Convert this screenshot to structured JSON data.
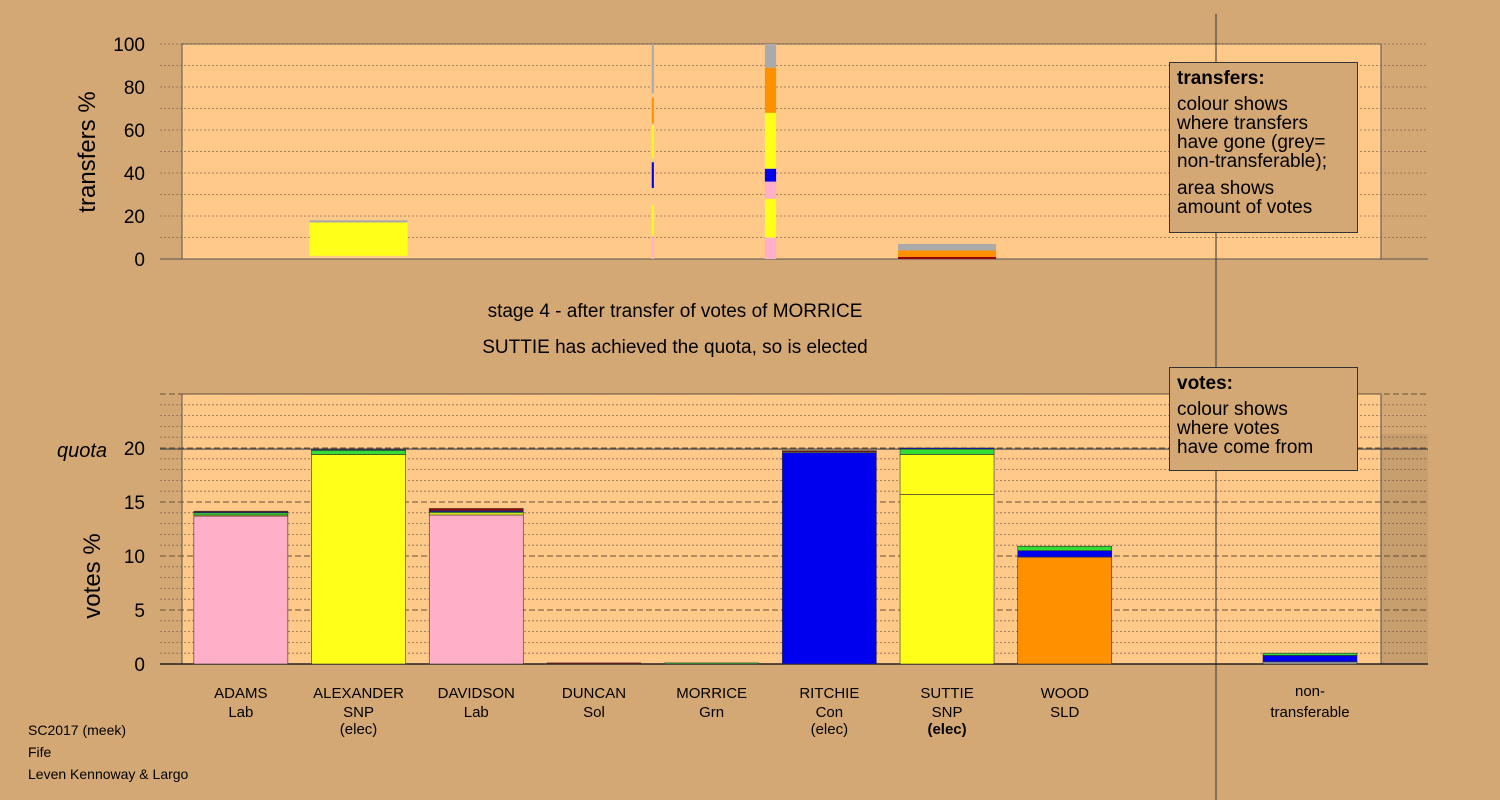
{
  "chart_data": {
    "type": "bar",
    "title": "stage 4 - after transfer of votes of MORRICE",
    "subtitle": "SUTTIE has achieved the quota, so is elected",
    "quota": 19.9,
    "quota_label": "quota",
    "colors": {
      "Lab": "#ffb0c8",
      "SNP": "#ffff1a",
      "Con": "#0000ee",
      "SLD": "#ff9000",
      "Grn": "#33dd33",
      "Sol": "#990000",
      "nontransferable": "#aaaaaa"
    },
    "transfers": {
      "ylabel": "transfers %",
      "ylim": [
        0,
        100
      ],
      "yticks": [
        0,
        20,
        40,
        60,
        80,
        100
      ],
      "columns": [
        {
          "index": 1,
          "width_pct": 7,
          "segments": [
            [
              "SNP",
              1.5,
              17
            ],
            [
              "nontransferable",
              17,
              18
            ]
          ]
        },
        {
          "index": 3.5,
          "width_pct": 0.15,
          "segments": [
            [
              "Lab",
              0,
              10
            ],
            [
              "SNP",
              11,
              25
            ],
            [
              "Con",
              33,
              45
            ],
            [
              "SNP",
              47,
              62
            ],
            [
              "SLD",
              63,
              75
            ],
            [
              "nontransferable",
              77,
              100
            ]
          ]
        },
        {
          "index": 4.5,
          "width_pct": 0.8,
          "segments": [
            [
              "Lab",
              0,
              10
            ],
            [
              "SNP",
              10,
              28
            ],
            [
              "Lab",
              28,
              36
            ],
            [
              "Con",
              36,
              42
            ],
            [
              "SNP",
              42,
              68
            ],
            [
              "SLD",
              68,
              89
            ],
            [
              "nontransferable",
              89,
              100
            ]
          ]
        },
        {
          "index": 6,
          "width_pct": 7,
          "segments": [
            [
              "Sol",
              0,
              1
            ],
            [
              "SLD",
              1,
              4
            ],
            [
              "nontransferable",
              4,
              7
            ]
          ]
        }
      ]
    },
    "votes": {
      "ylabel": "votes %",
      "ylim": [
        0,
        20
      ],
      "yticks": [
        0,
        5,
        10,
        15,
        20
      ],
      "candidates": [
        {
          "name": "ADAMS",
          "party": "Lab",
          "status": "",
          "segments": [
            [
              "Lab",
              13.7
            ],
            [
              "SNP",
              0.1
            ],
            [
              "Grn",
              0.2
            ],
            [
              "Con",
              0.1
            ],
            [
              "Sol",
              0.05
            ]
          ]
        },
        {
          "name": "ALEXANDER",
          "party": "SNP",
          "status": "(elec)",
          "segments": [
            [
              "SNP",
              19.4
            ],
            [
              "Grn",
              0.4
            ],
            [
              "Con",
              0.05
            ]
          ]
        },
        {
          "name": "DAVIDSON",
          "party": "Lab",
          "status": "",
          "segments": [
            [
              "Lab",
              13.8
            ],
            [
              "SNP",
              0.2
            ],
            [
              "Grn",
              0.1
            ],
            [
              "Con",
              0.1
            ],
            [
              "Sol",
              0.2
            ]
          ]
        },
        {
          "name": "DUNCAN",
          "party": "Sol",
          "status": "",
          "segments": [
            [
              "Sol",
              0.1
            ]
          ]
        },
        {
          "name": "MORRICE",
          "party": "Grn",
          "status": "",
          "segments": [
            [
              "Grn",
              0.1
            ]
          ]
        },
        {
          "name": "RITCHIE",
          "party": "Con",
          "status": "(elec)",
          "segments": [
            [
              "Con",
              19.6
            ],
            [
              "SNP",
              0.05
            ],
            [
              "Sol",
              0.1
            ]
          ]
        },
        {
          "name": "SUTTIE",
          "party": "SNP",
          "status": "(elec)",
          "status_bold": true,
          "segments": [
            [
              "SNP",
              15.7
            ],
            [
              "SNP",
              3.7
            ],
            [
              "Grn",
              0.5
            ],
            [
              "Con",
              0.1
            ]
          ]
        },
        {
          "name": "WOOD",
          "party": "SLD",
          "status": "",
          "segments": [
            [
              "SLD",
              9.9
            ],
            [
              "Con",
              0.6
            ],
            [
              "Grn",
              0.4
            ]
          ]
        }
      ],
      "nontransferable": {
        "label_line1": "non-",
        "label_line2": "transferable",
        "segments": [
          [
            "nontransferable",
            0.2
          ],
          [
            "Con",
            0.6
          ],
          [
            "Grn",
            0.2
          ]
        ]
      }
    }
  },
  "legend": {
    "transfers": {
      "title": "transfers:",
      "lines1": [
        "colour shows",
        "where transfers",
        "have gone (grey=",
        "non-transferable);"
      ],
      "lines2": [
        "area shows",
        "amount of votes"
      ]
    },
    "votes": {
      "title": "votes:",
      "lines": [
        "colour shows",
        "where votes",
        "have come from"
      ]
    }
  },
  "footer": {
    "line1": "SC2017 (meek)",
    "line2": "Fife",
    "line3": "Leven Kennoway & Largo"
  }
}
